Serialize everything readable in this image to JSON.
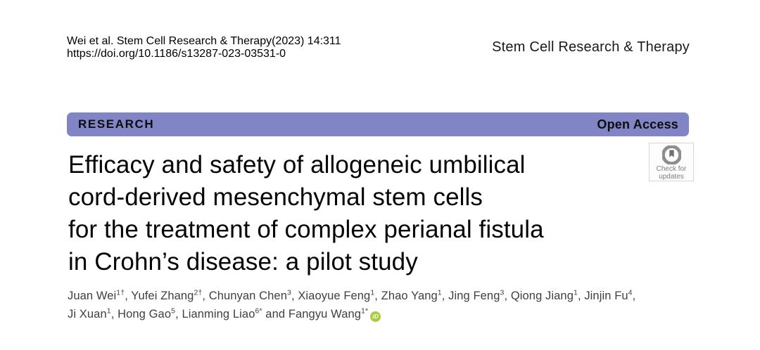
{
  "header": {
    "citation": {
      "author_prefix": "Wei ",
      "italic_part": "et al. Stem Cell Research & Therapy",
      "issue_part": "(2023) 14:311",
      "doi": "https://doi.org/10.1186/s13287-023-03531-0"
    },
    "journal_name": "Stem Cell Research & Therapy"
  },
  "banner": {
    "left_label": "RESEARCH",
    "right_label": "Open Access",
    "background_color": "#8184c5"
  },
  "title": {
    "lines": [
      "Efficacy and safety of allogeneic umbilical",
      "cord-derived mesenchymal stem cells",
      "for the treatment of complex perianal fistula",
      "in Crohn’s disease: a pilot study"
    ]
  },
  "badge": {
    "line1": "Check for",
    "line2": "updates"
  },
  "authors": [
    {
      "name": "Juan Wei",
      "sup": "1†",
      "sep": ", "
    },
    {
      "name": "Yufei Zhang",
      "sup": "2†",
      "sep": ", "
    },
    {
      "name": "Chunyan Chen",
      "sup": "3",
      "sep": ", "
    },
    {
      "name": "Xiaoyue Feng",
      "sup": "1",
      "sep": ", "
    },
    {
      "name": "Zhao Yang",
      "sup": "1",
      "sep": ", "
    },
    {
      "name": "Jing Feng",
      "sup": "3",
      "sep": ", "
    },
    {
      "name": "Qiong Jiang",
      "sup": "1",
      "sep": ", "
    },
    {
      "name": "Jinjin Fu",
      "sup": "4",
      "sep": ",",
      "break_after": true
    },
    {
      "name": "Ji Xuan",
      "sup": "1",
      "sep": ", "
    },
    {
      "name": "Hong Gao",
      "sup": "5",
      "sep": ", "
    },
    {
      "name": "Lianming Liao",
      "sup": "6*",
      "sep": " and "
    },
    {
      "name": "Fangyu Wang",
      "sup": "1*",
      "sep": "",
      "orcid": true
    }
  ],
  "icons": {
    "orcid_label": "iD",
    "orcid_color": "#a6ce39",
    "check_updates_circle_color": "#8e8e8e"
  }
}
